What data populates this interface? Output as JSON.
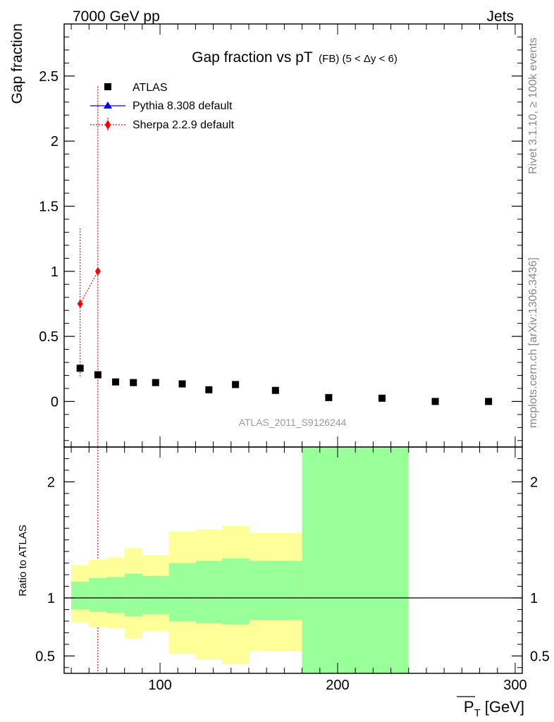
{
  "header": {
    "left": "7000 GeV pp",
    "right": "Jets"
  },
  "side_labels": {
    "rivet": "Rivet 3.1.10, ≥ 100k events",
    "mcplots": "mcplots.cern.ch [arXiv:1306.3436]"
  },
  "chart_data": [
    {
      "type": "scatter",
      "panel": "main",
      "title": "Gap fraction vs pT",
      "title_suffix": "(FB) (5 < Δy < 6)",
      "ylabel": "Gap fraction",
      "xlabel": "",
      "xlim": [
        46,
        304
      ],
      "ylim": [
        -0.35,
        2.9
      ],
      "yticks": [
        0,
        0.5,
        1,
        1.5,
        2,
        2.5
      ],
      "ytick_labels": [
        "0",
        "0.5",
        "1",
        "1.5",
        "2",
        "2.5"
      ],
      "grid": false,
      "legend_position": "top-left",
      "watermark": "ATLAS_2011_S9126244",
      "colors": {
        "atlas": "#000000",
        "pythia": "#0000ff",
        "sherpa": "#ff0000"
      },
      "series": [
        {
          "name": "ATLAS",
          "marker": "square",
          "x": [
            55,
            65,
            75,
            85,
            97.5,
            112.5,
            127.5,
            142.5,
            165,
            195,
            225,
            255,
            285
          ],
          "y": [
            0.255,
            0.205,
            0.15,
            0.145,
            0.145,
            0.135,
            0.09,
            0.13,
            0.085,
            0.03,
            0.025,
            0.0,
            0.0
          ]
        },
        {
          "name": "Pythia 8.308 default",
          "marker": "triangle",
          "x": [],
          "y": []
        },
        {
          "name": "Sherpa 2.2.9 default",
          "marker": "diamond",
          "x": [
            55,
            65
          ],
          "y": [
            0.75,
            1.0
          ],
          "yerr_low": [
            0.18,
            -0.35
          ],
          "yerr_high": [
            1.33,
            2.42
          ]
        }
      ]
    },
    {
      "type": "area",
      "panel": "ratio",
      "title": "",
      "ylabel": "Ratio to ATLAS",
      "xlabel": "P_T [GeV]",
      "xlabel_parts": {
        "symbol": "P",
        "subscript": "T",
        "unit": "[GeV]"
      },
      "xlim": [
        46,
        304
      ],
      "ylim": [
        0.35,
        2.3
      ],
      "xticks": [
        100,
        200,
        300
      ],
      "xtick_labels": [
        "100",
        "200",
        "300"
      ],
      "yticks": [
        0.5,
        1,
        2
      ],
      "ytick_labels": [
        "0.5",
        "1",
        "2"
      ],
      "reference_line": 1,
      "colors": {
        "stat_band": "#99ff99",
        "total_band": "#ffff99"
      },
      "bins": [
        {
          "x_lo": 50,
          "x_hi": 60,
          "stat_lo": 0.9,
          "stat_hi": 1.14,
          "tot_lo": 0.79,
          "tot_hi": 1.28
        },
        {
          "x_lo": 60,
          "x_hi": 70,
          "stat_lo": 0.88,
          "stat_hi": 1.17,
          "tot_lo": 0.75,
          "tot_hi": 1.33
        },
        {
          "x_lo": 70,
          "x_hi": 80,
          "stat_lo": 0.87,
          "stat_hi": 1.18,
          "tot_lo": 0.74,
          "tot_hi": 1.35
        },
        {
          "x_lo": 80,
          "x_hi": 90,
          "stat_lo": 0.84,
          "stat_hi": 1.21,
          "tot_lo": 0.65,
          "tot_hi": 1.43
        },
        {
          "x_lo": 90,
          "x_hi": 105,
          "stat_lo": 0.86,
          "stat_hi": 1.19,
          "tot_lo": 0.71,
          "tot_hi": 1.37
        },
        {
          "x_lo": 105,
          "x_hi": 120,
          "stat_lo": 0.8,
          "stat_hi": 1.3,
          "tot_lo": 0.52,
          "tot_hi": 1.57
        },
        {
          "x_lo": 120,
          "x_hi": 135,
          "stat_lo": 0.78,
          "stat_hi": 1.32,
          "tot_lo": 0.47,
          "tot_hi": 1.59
        },
        {
          "x_lo": 135,
          "x_hi": 150,
          "stat_lo": 0.77,
          "stat_hi": 1.34,
          "tot_lo": 0.43,
          "tot_hi": 1.62
        },
        {
          "x_lo": 150,
          "x_hi": 180,
          "stat_lo": 0.81,
          "stat_hi": 1.32,
          "tot_lo": 0.54,
          "tot_hi": 1.56
        },
        {
          "x_lo": 180,
          "x_hi": 240,
          "stat_lo": 0.35,
          "stat_hi": 2.3,
          "tot_lo": 0.35,
          "tot_hi": 2.3
        }
      ]
    }
  ]
}
